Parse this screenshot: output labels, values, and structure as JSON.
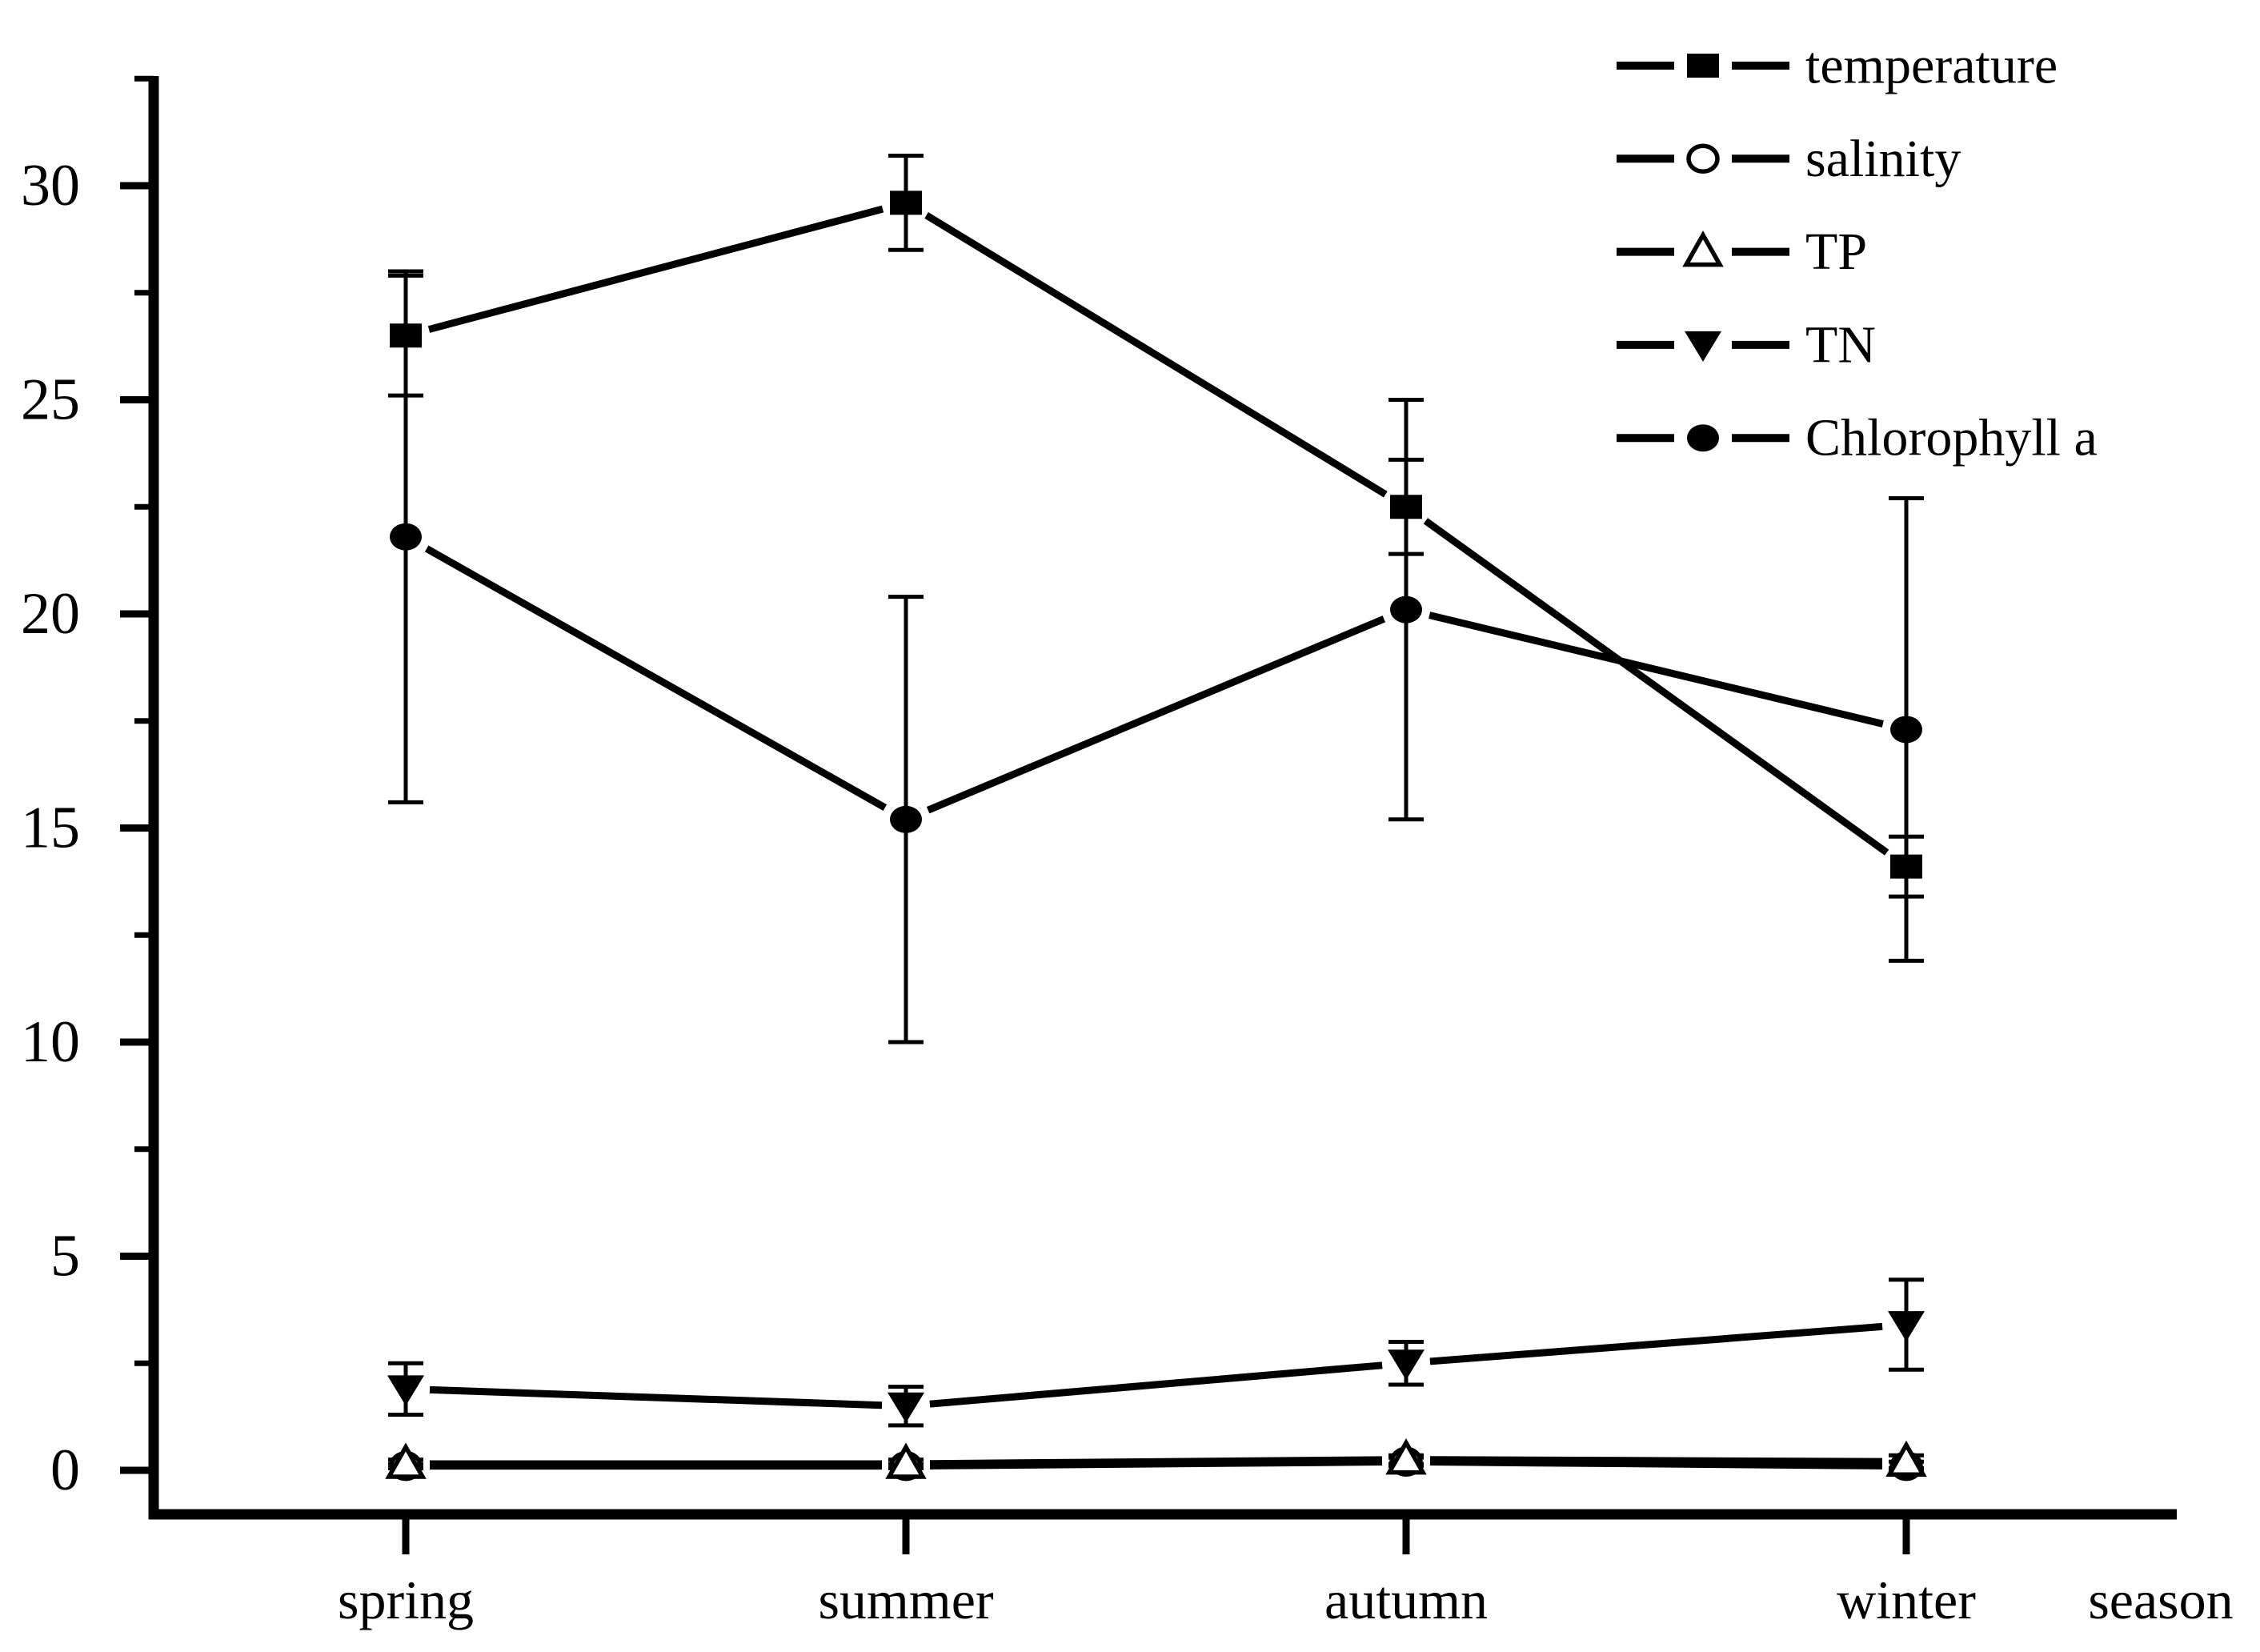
{
  "chart_data": {
    "type": "line",
    "title": "",
    "xlabel": "season",
    "ylabel": "",
    "categories": [
      "spring",
      "summer",
      "autumn",
      "winter"
    ],
    "y_ticks": [
      0,
      5,
      10,
      15,
      20,
      25,
      30
    ],
    "y_minor_ticks": [
      2.5,
      7.5,
      12.5,
      17.5,
      22.5,
      27.5,
      32.5
    ],
    "ylim": [
      -1.0,
      32.6
    ],
    "grid": false,
    "legend_position": "top-right",
    "error_bars": true,
    "series": [
      {
        "name": "temperature",
        "marker": "square-filled",
        "values": [
          26.5,
          29.6,
          22.5,
          14.1
        ],
        "errors": [
          1.4,
          1.1,
          1.1,
          0.7
        ]
      },
      {
        "name": "salinity",
        "marker": "circle-open",
        "values": [
          0.1,
          0.1,
          0.2,
          0.1
        ],
        "errors": [
          0.05,
          0.05,
          0.1,
          0.1
        ]
      },
      {
        "name": "TP",
        "marker": "triangle-up-open",
        "values": [
          0.15,
          0.15,
          0.25,
          0.2
        ],
        "errors": [
          0.1,
          0.1,
          0.1,
          0.15
        ]
      },
      {
        "name": "TN",
        "marker": "triangle-down-filled",
        "values": [
          1.9,
          1.5,
          2.5,
          3.4
        ],
        "errors": [
          0.6,
          0.45,
          0.5,
          1.05
        ]
      },
      {
        "name": "Chlorophyll a",
        "marker": "circle-filled",
        "values": [
          21.8,
          15.2,
          20.1,
          17.3
        ],
        "errors": [
          6.2,
          5.2,
          4.9,
          5.4
        ]
      }
    ],
    "colors": {
      "foreground": "#000000",
      "background": "#ffffff"
    }
  }
}
